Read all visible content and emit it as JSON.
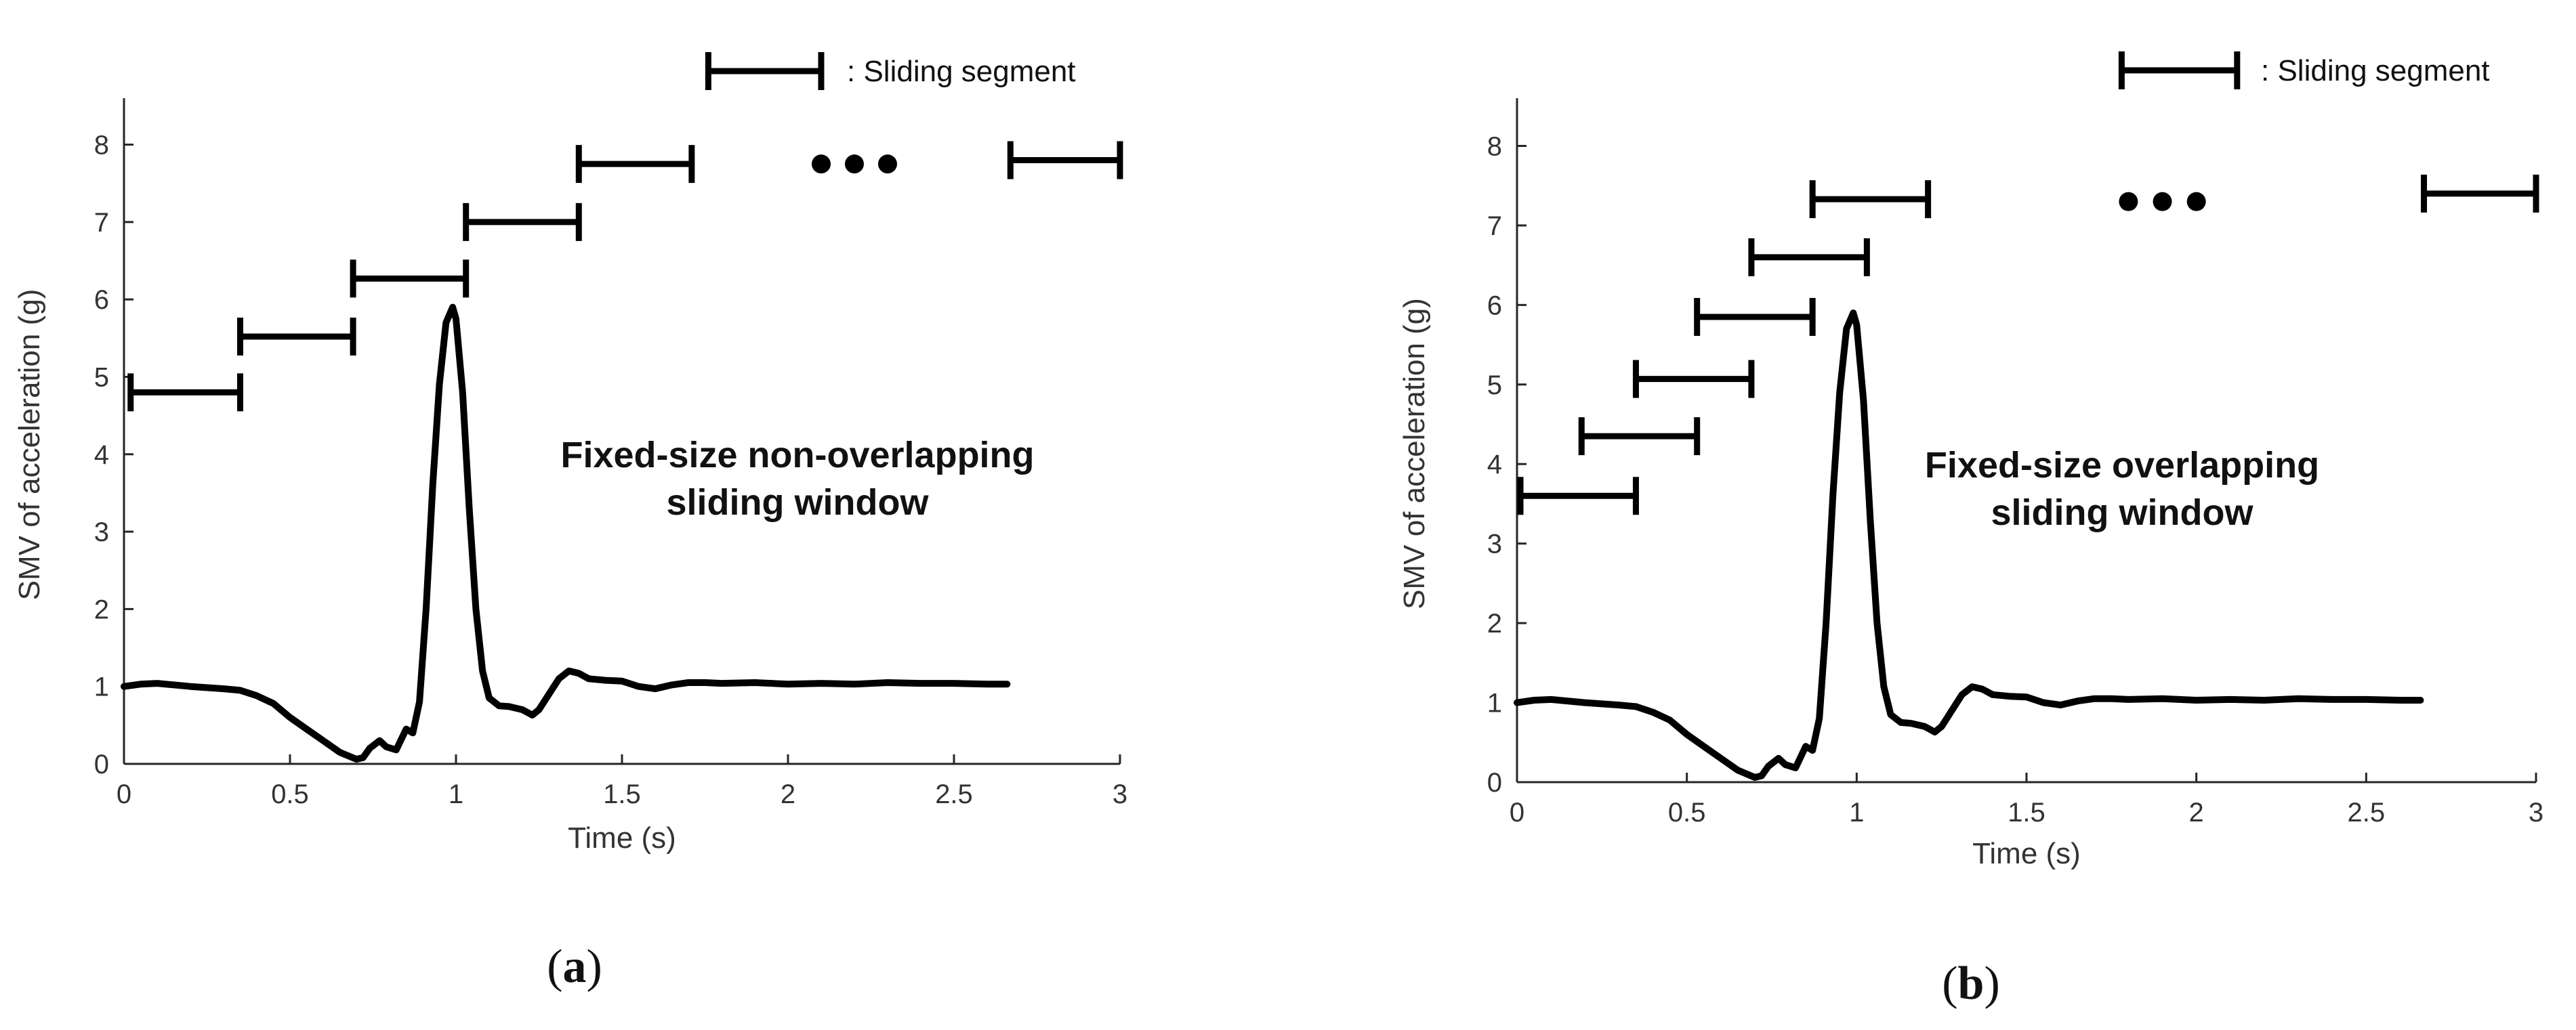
{
  "chart_data": [
    {
      "type": "line",
      "panel_label": "a",
      "xlabel": "Time (s)",
      "ylabel": "SMV of acceleration (g)",
      "xlim": [
        0,
        3
      ],
      "ylim": [
        0,
        8.6
      ],
      "xticks": [
        0,
        0.5,
        1,
        1.5,
        2,
        2.5,
        3
      ],
      "xtick_labels": [
        "0",
        "0.5",
        "1",
        "1.5",
        "2",
        "2.5",
        "3"
      ],
      "yticks": [
        0,
        1,
        2,
        3,
        4,
        5,
        6,
        7,
        8
      ],
      "ytick_labels": [
        "0",
        "1",
        "2",
        "3",
        "4",
        "5",
        "6",
        "7",
        "8"
      ],
      "annotation": [
        "Fixed-size non-overlapping",
        "sliding window"
      ],
      "legend": {
        "label": ": Sliding segment"
      },
      "series": [
        {
          "name": "SMV",
          "x": [
            0,
            0.05,
            0.1,
            0.2,
            0.3,
            0.35,
            0.4,
            0.45,
            0.5,
            0.55,
            0.6,
            0.65,
            0.7,
            0.72,
            0.74,
            0.77,
            0.79,
            0.82,
            0.85,
            0.87,
            0.89,
            0.91,
            0.93,
            0.95,
            0.97,
            0.99,
            1.0,
            1.02,
            1.04,
            1.06,
            1.08,
            1.1,
            1.13,
            1.16,
            1.2,
            1.23,
            1.25,
            1.28,
            1.31,
            1.34,
            1.37,
            1.4,
            1.45,
            1.5,
            1.55,
            1.6,
            1.65,
            1.7,
            1.75,
            1.8,
            1.9,
            2.0,
            2.1,
            2.2,
            2.3,
            2.4,
            2.5,
            2.6,
            2.66
          ],
          "y": [
            1.0,
            1.03,
            1.04,
            1.0,
            0.97,
            0.95,
            0.88,
            0.78,
            0.6,
            0.45,
            0.3,
            0.15,
            0.06,
            0.08,
            0.2,
            0.3,
            0.22,
            0.18,
            0.45,
            0.4,
            0.8,
            2.0,
            3.6,
            4.9,
            5.7,
            5.9,
            5.75,
            4.8,
            3.3,
            2.0,
            1.2,
            0.85,
            0.75,
            0.74,
            0.7,
            0.63,
            0.7,
            0.9,
            1.1,
            1.2,
            1.17,
            1.1,
            1.08,
            1.07,
            1.0,
            0.97,
            1.02,
            1.05,
            1.05,
            1.04,
            1.05,
            1.03,
            1.04,
            1.03,
            1.05,
            1.04,
            1.04,
            1.03,
            1.03
          ]
        }
      ],
      "segments": [
        {
          "x0": 0.02,
          "x1": 0.35,
          "y": 4.8
        },
        {
          "x0": 0.35,
          "x1": 0.69,
          "y": 5.52
        },
        {
          "x0": 0.69,
          "x1": 1.03,
          "y": 6.27
        },
        {
          "x0": 1.03,
          "x1": 1.37,
          "y": 7.0
        },
        {
          "x0": 1.37,
          "x1": 1.71,
          "y": 7.75
        },
        {
          "x0": 2.67,
          "x1": 3.0,
          "y": 7.8
        }
      ],
      "ellipsis": {
        "x": [
          2.1,
          2.2,
          2.3
        ],
        "y": 7.75
      },
      "legend_marker": {
        "x0": 1.76,
        "x1": 2.1,
        "y": 8.95
      }
    },
    {
      "type": "line",
      "panel_label": "b",
      "xlabel": "Time (s)",
      "ylabel": "SMV of acceleration (g)",
      "xlim": [
        0,
        3
      ],
      "ylim": [
        0,
        8.6
      ],
      "xticks": [
        0,
        0.5,
        1,
        1.5,
        2,
        2.5,
        3
      ],
      "xtick_labels": [
        "0",
        "0.5",
        "1",
        "1.5",
        "2",
        "2.5",
        "3"
      ],
      "yticks": [
        0,
        1,
        2,
        3,
        4,
        5,
        6,
        7,
        8
      ],
      "ytick_labels": [
        "0",
        "1",
        "2",
        "3",
        "4",
        "5",
        "6",
        "7",
        "8"
      ],
      "annotation": [
        "Fixed-size overlapping",
        "sliding window"
      ],
      "legend": {
        "label": ": Sliding segment"
      },
      "series": [
        {
          "name": "SMV",
          "x": [
            0,
            0.05,
            0.1,
            0.2,
            0.3,
            0.35,
            0.4,
            0.45,
            0.5,
            0.55,
            0.6,
            0.65,
            0.7,
            0.72,
            0.74,
            0.77,
            0.79,
            0.82,
            0.85,
            0.87,
            0.89,
            0.91,
            0.93,
            0.95,
            0.97,
            0.99,
            1.0,
            1.02,
            1.04,
            1.06,
            1.08,
            1.1,
            1.13,
            1.16,
            1.2,
            1.23,
            1.25,
            1.28,
            1.31,
            1.34,
            1.37,
            1.4,
            1.45,
            1.5,
            1.55,
            1.6,
            1.65,
            1.7,
            1.75,
            1.8,
            1.9,
            2.0,
            2.1,
            2.2,
            2.3,
            2.4,
            2.5,
            2.6,
            2.66
          ],
          "y": [
            1.0,
            1.03,
            1.04,
            1.0,
            0.97,
            0.95,
            0.88,
            0.78,
            0.6,
            0.45,
            0.3,
            0.15,
            0.06,
            0.08,
            0.2,
            0.3,
            0.22,
            0.18,
            0.45,
            0.4,
            0.8,
            2.0,
            3.6,
            4.9,
            5.7,
            5.9,
            5.75,
            4.8,
            3.3,
            2.0,
            1.2,
            0.85,
            0.75,
            0.74,
            0.7,
            0.63,
            0.7,
            0.9,
            1.1,
            1.2,
            1.17,
            1.1,
            1.08,
            1.07,
            1.0,
            0.97,
            1.02,
            1.05,
            1.05,
            1.04,
            1.05,
            1.03,
            1.04,
            1.03,
            1.05,
            1.04,
            1.04,
            1.03,
            1.03
          ]
        }
      ],
      "segments": [
        {
          "x0": 0.01,
          "x1": 0.35,
          "y": 3.6
        },
        {
          "x0": 0.19,
          "x1": 0.53,
          "y": 4.35
        },
        {
          "x0": 0.35,
          "x1": 0.69,
          "y": 5.07
        },
        {
          "x0": 0.53,
          "x1": 0.87,
          "y": 5.85
        },
        {
          "x0": 0.69,
          "x1": 1.03,
          "y": 6.6
        },
        {
          "x0": 0.87,
          "x1": 1.21,
          "y": 7.33
        },
        {
          "x0": 2.67,
          "x1": 3.0,
          "y": 7.4
        }
      ],
      "ellipsis": {
        "x": [
          1.8,
          1.9,
          2.0
        ],
        "y": 7.3
      },
      "legend_marker": {
        "x0": 1.78,
        "x1": 2.12,
        "y": 8.95
      }
    }
  ]
}
